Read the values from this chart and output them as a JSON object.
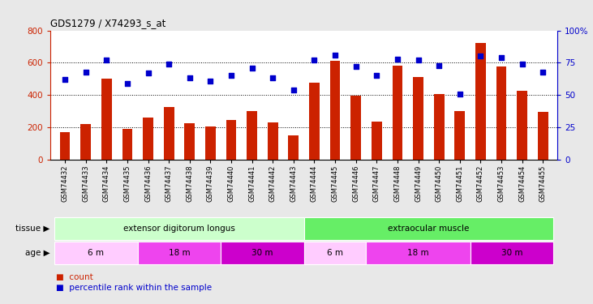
{
  "title": "GDS1279 / X74293_s_at",
  "samples": [
    "GSM74432",
    "GSM74433",
    "GSM74434",
    "GSM74435",
    "GSM74436",
    "GSM74437",
    "GSM74438",
    "GSM74439",
    "GSM74440",
    "GSM74441",
    "GSM74442",
    "GSM74443",
    "GSM74444",
    "GSM74445",
    "GSM74446",
    "GSM74447",
    "GSM74448",
    "GSM74449",
    "GSM74450",
    "GSM74451",
    "GSM74452",
    "GSM74453",
    "GSM74454",
    "GSM74455"
  ],
  "counts": [
    170,
    220,
    500,
    190,
    260,
    325,
    225,
    205,
    245,
    300,
    230,
    150,
    475,
    610,
    395,
    235,
    580,
    510,
    405,
    300,
    720,
    575,
    425,
    295
  ],
  "percentiles": [
    62,
    68,
    77,
    59,
    67,
    74,
    63,
    61,
    65,
    71,
    63,
    54,
    77,
    81,
    72,
    65,
    78,
    77,
    73,
    51,
    80,
    79,
    74,
    68
  ],
  "ylim_left": [
    0,
    800
  ],
  "ylim_right": [
    0,
    100
  ],
  "yticks_left": [
    0,
    200,
    400,
    600,
    800
  ],
  "yticks_right": [
    0,
    25,
    50,
    75,
    100
  ],
  "bar_color": "#cc2200",
  "marker_color": "#0000cc",
  "tissue_groups": [
    {
      "label": "extensor digitorum longus",
      "start": 0,
      "end": 12,
      "color": "#ccffcc"
    },
    {
      "label": "extraocular muscle",
      "start": 12,
      "end": 24,
      "color": "#66ee66"
    }
  ],
  "age_groups": [
    {
      "label": "6 m",
      "start": 0,
      "end": 4,
      "color": "#ffccff"
    },
    {
      "label": "18 m",
      "start": 4,
      "end": 8,
      "color": "#ee44ee"
    },
    {
      "label": "30 m",
      "start": 8,
      "end": 12,
      "color": "#cc00cc"
    },
    {
      "label": "6 m",
      "start": 12,
      "end": 15,
      "color": "#ffccff"
    },
    {
      "label": "18 m",
      "start": 15,
      "end": 20,
      "color": "#ee44ee"
    },
    {
      "label": "30 m",
      "start": 20,
      "end": 24,
      "color": "#cc00cc"
    }
  ],
  "bg_color": "#e8e8e8",
  "plot_bg": "#ffffff",
  "legend_count_color": "#cc2200",
  "legend_pct_color": "#0000cc",
  "left_label_tissue": "tissue",
  "left_label_age": "age",
  "arrow": "▶"
}
